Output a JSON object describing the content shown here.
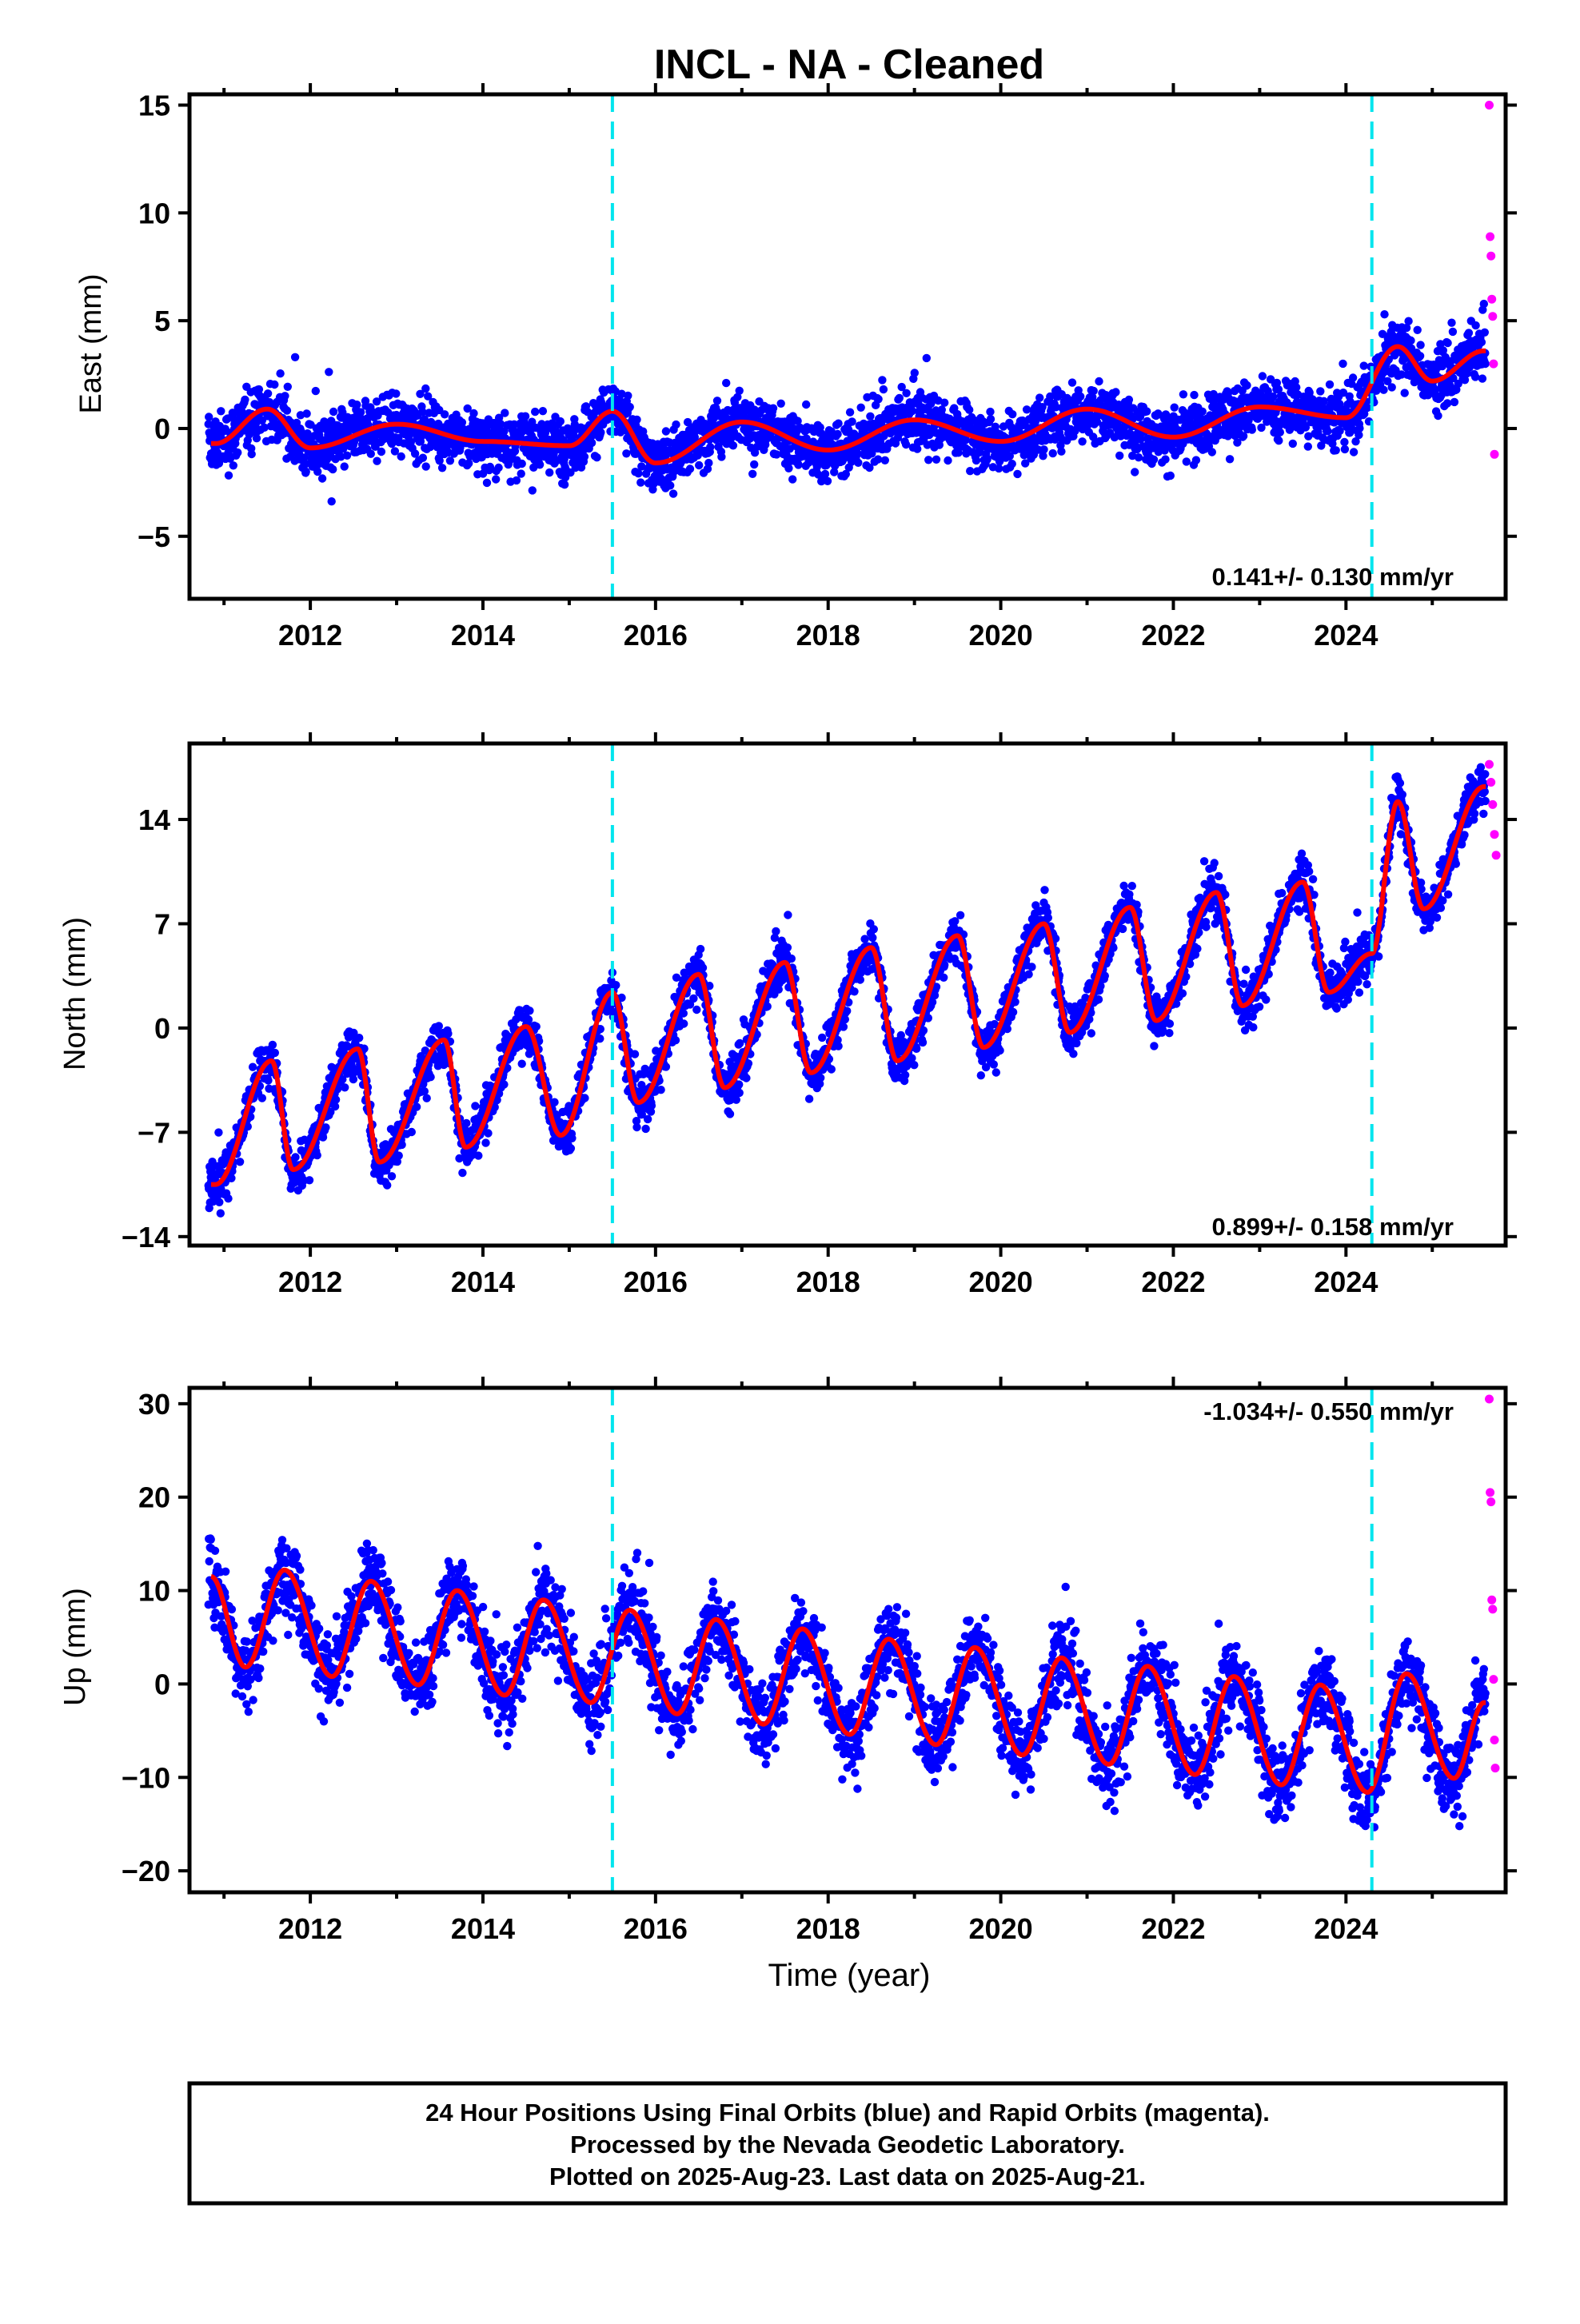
{
  "title": "INCL  - NA - Cleaned",
  "chart_data": [
    {
      "type": "scatter",
      "panel": "east",
      "ylabel": "East (mm)",
      "xlabel": "",
      "xlim": [
        2010.6,
        2025.85
      ],
      "ylim": [
        -7.9,
        15.5
      ],
      "yticks": [
        -5,
        0,
        5,
        10,
        15
      ],
      "yticklabels": [
        "−5",
        "0",
        "5",
        "10",
        "15"
      ],
      "xticks": [
        2012,
        2014,
        2016,
        2018,
        2020,
        2022,
        2024
      ],
      "xticklabels": [
        "2012",
        "2014",
        "2016",
        "2018",
        "2020",
        "2022",
        "2024"
      ],
      "rate_label": "0.141+/- 0.130 mm/yr",
      "rate_position": "bottom-right",
      "offsets": [
        2015.5,
        2024.3
      ],
      "series": [
        {
          "role": "final-orbits",
          "color": "#0000ff",
          "values_desc": "daily positions",
          "x": [
            2010.9,
            2011.5,
            2012.0,
            2013.0,
            2014.0,
            2015.0,
            2015.5,
            2016.0,
            2017.0,
            2018.0,
            2019.0,
            2020.0,
            2021.0,
            2022.0,
            2023.0,
            2024.0,
            2024.6,
            2025.0,
            2025.6
          ],
          "y": [
            -0.7,
            0.9,
            -0.9,
            0.2,
            -0.6,
            -0.8,
            0.8,
            -1.6,
            0.3,
            -1.0,
            0.4,
            -0.6,
            0.9,
            -0.4,
            1.0,
            0.5,
            3.8,
            2.2,
            3.6
          ]
        },
        {
          "role": "rapid-orbits",
          "color": "#ff00ff",
          "x": [
            2025.66,
            2025.67,
            2025.68,
            2025.69,
            2025.7,
            2025.71,
            2025.72
          ],
          "y": [
            15.0,
            8.9,
            8.0,
            6.0,
            5.2,
            3.0,
            -1.2
          ]
        },
        {
          "role": "model-fit",
          "color": "#ff0000",
          "rate": 0.141,
          "mean": -0.25,
          "offset_jumps": [
            [
              2015.5,
              -0.2
            ],
            [
              2024.3,
              2.4
            ]
          ]
        }
      ]
    },
    {
      "type": "scatter",
      "panel": "north",
      "ylabel": "North (mm)",
      "xlabel": "",
      "xlim": [
        2010.6,
        2025.85
      ],
      "ylim": [
        -14.6,
        19.1
      ],
      "yticks": [
        -14,
        -7,
        0,
        7,
        14
      ],
      "yticklabels": [
        "−14",
        "−7",
        "0",
        "7",
        "14"
      ],
      "xticks": [
        2012,
        2014,
        2016,
        2018,
        2020,
        2022,
        2024
      ],
      "xticklabels": [
        "2012",
        "2014",
        "2016",
        "2018",
        "2020",
        "2022",
        "2024"
      ],
      "rate_label": "0.899+/- 0.158 mm/yr",
      "rate_position": "bottom-right",
      "offsets": [
        2015.5,
        2024.3
      ],
      "series": [
        {
          "role": "final-orbits",
          "color": "#0000ff",
          "x": [
            2010.9,
            2011.55,
            2011.8,
            2012.55,
            2012.8,
            2013.55,
            2013.8,
            2014.5,
            2014.9,
            2015.5,
            2015.8,
            2016.5,
            2016.8,
            2017.5,
            2017.8,
            2018.5,
            2018.8,
            2019.5,
            2019.8,
            2020.5,
            2020.8,
            2021.5,
            2021.8,
            2022.5,
            2022.8,
            2023.5,
            2023.8,
            2024.3,
            2024.6,
            2024.9,
            2025.6
          ],
          "y": [
            -10.5,
            -2.2,
            -9.5,
            -1.4,
            -9.0,
            -0.8,
            -8.0,
            0.1,
            -7.2,
            2.4,
            -5.0,
            3.6,
            -4.0,
            4.4,
            -3.0,
            5.4,
            -2.2,
            6.2,
            -1.3,
            7.0,
            -0.3,
            8.1,
            0.5,
            9.1,
            1.5,
            9.8,
            2.4,
            5.0,
            15.2,
            8.0,
            16.2
          ]
        },
        {
          "role": "rapid-orbits",
          "color": "#ff00ff",
          "x": [
            2025.66,
            2025.68,
            2025.7,
            2025.72,
            2025.74
          ],
          "y": [
            17.7,
            16.5,
            15.0,
            13.0,
            11.6
          ]
        },
        {
          "role": "model-fit",
          "color": "#ff0000",
          "rate": 0.899,
          "mean": -6.0,
          "offset_jumps": [
            [
              2015.5,
              0.0
            ],
            [
              2024.3,
              8.5
            ]
          ]
        }
      ]
    },
    {
      "type": "scatter",
      "panel": "up",
      "ylabel": "Up (mm)",
      "xlabel": "Time (year)",
      "xlim": [
        2010.6,
        2025.85
      ],
      "ylim": [
        -22.3,
        31.7
      ],
      "yticks": [
        -20,
        -10,
        0,
        10,
        20,
        30
      ],
      "yticklabels": [
        "−20",
        "−10",
        "0",
        "10",
        "20",
        "30"
      ],
      "xticks": [
        2012,
        2014,
        2016,
        2018,
        2020,
        2022,
        2024
      ],
      "xticklabels": [
        "2012",
        "2014",
        "2016",
        "2018",
        "2020",
        "2022",
        "2024"
      ],
      "rate_label": "-1.034+/- 0.550 mm/yr",
      "rate_position": "top-right",
      "offsets": [
        2015.5,
        2024.3
      ],
      "series": [
        {
          "role": "final-orbits",
          "color": "#0000ff",
          "x": [
            2010.85,
            2011.25,
            2011.7,
            2012.25,
            2012.7,
            2013.25,
            2013.7,
            2014.25,
            2014.7,
            2015.25,
            2015.7,
            2016.25,
            2016.7,
            2017.25,
            2017.7,
            2018.25,
            2018.7,
            2019.25,
            2019.7,
            2020.25,
            2020.7,
            2021.25,
            2021.7,
            2022.25,
            2022.7,
            2023.25,
            2023.7,
            2024.25,
            2024.7,
            2025.25,
            2025.6
          ],
          "y": [
            11.5,
            1.8,
            12.2,
            0.8,
            11.0,
            -0.1,
            10.0,
            -1.2,
            9.0,
            -2.0,
            7.9,
            -3.2,
            6.9,
            -4.3,
            5.9,
            -5.4,
            4.8,
            -6.5,
            3.9,
            -7.6,
            2.8,
            -8.6,
            1.9,
            -9.7,
            0.8,
            -10.8,
            -0.1,
            -11.6,
            1.1,
            -10.1,
            -2.0
          ]
        },
        {
          "role": "rapid-orbits",
          "color": "#ff00ff",
          "x": [
            2025.66,
            2025.67,
            2025.68,
            2025.69,
            2025.7,
            2025.71,
            2025.72,
            2025.73
          ],
          "y": [
            30.5,
            20.5,
            19.5,
            9.0,
            8.0,
            0.5,
            -6.0,
            -9.0
          ]
        },
        {
          "role": "model-fit",
          "color": "#ff0000",
          "rate": -1.034,
          "mean": 0.5,
          "offset_jumps": []
        }
      ]
    }
  ],
  "caption": {
    "line1": "24 Hour Positions Using Final Orbits (blue) and Rapid Orbits (magenta).",
    "line2": "Processed by the Nevada Geodetic Laboratory.",
    "line3": "Plotted on 2025-Aug-23. Last data on 2025-Aug-21."
  },
  "colors": {
    "final_orbits": "#0000ff",
    "rapid_orbits": "#ff00ff",
    "model": "#ff0000",
    "offset_line": "#00e5ee",
    "frame": "#000000"
  }
}
